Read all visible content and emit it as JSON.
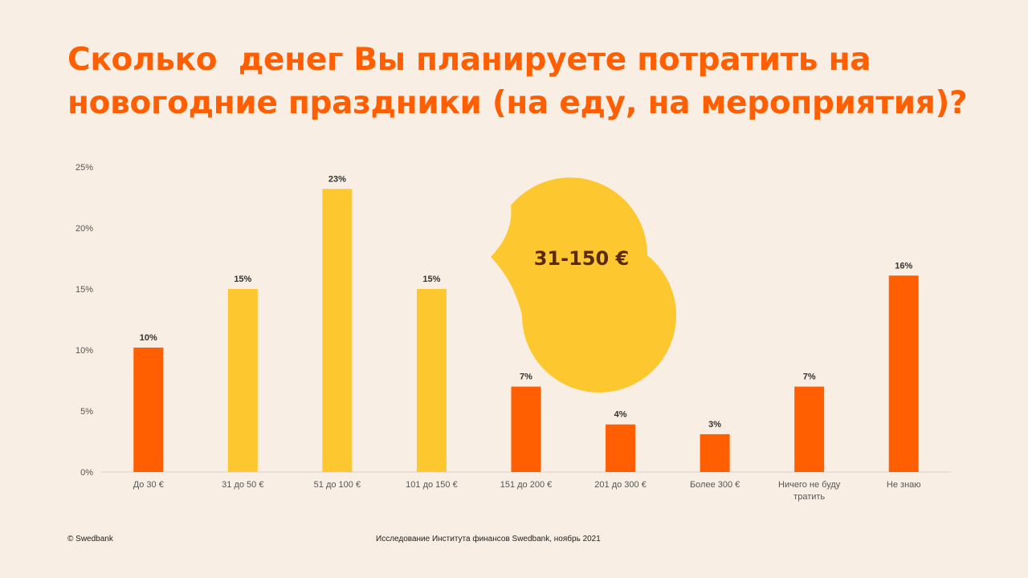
{
  "title": "Сколько  денег Вы планируете потратить на новогодние праздники (на еду, на мероприятия)?",
  "callout": {
    "label": "31-150 €",
    "color": "#fdc82f",
    "text_color": "#5a2a10"
  },
  "footer": {
    "copyright": "© Swedbank",
    "source": "Исследование Института финансов Swedbank, ноябрь 2021"
  },
  "colors": {
    "background": "#f8eee4",
    "accent_orange": "#ff5f00",
    "accent_yellow": "#fdc82f",
    "axis_text": "#555555",
    "label_text": "#333333"
  },
  "chart_data": {
    "type": "bar",
    "categories": [
      "До 30 €",
      "31 до 50 €",
      "51 до 100 €",
      "101 до 150 €",
      "151 до 200 €",
      "201 до 300 €",
      "Более 300 €",
      "Ничего не буду тратить",
      "Не знаю"
    ],
    "values": [
      10.2,
      15,
      23.2,
      15,
      7,
      3.9,
      3.1,
      7,
      16.1
    ],
    "value_labels": [
      "10%",
      "15%",
      "23%",
      "15%",
      "7%",
      "4%",
      "3%",
      "7%",
      "16%"
    ],
    "bar_colors": [
      "#ff5f00",
      "#fdc82f",
      "#fdc82f",
      "#fdc82f",
      "#ff5f00",
      "#ff5f00",
      "#ff5f00",
      "#ff5f00",
      "#ff5f00"
    ],
    "yticks": [
      "0%",
      "5%",
      "10%",
      "15%",
      "20%",
      "25%"
    ],
    "ylim": [
      0,
      25
    ],
    "grid": false
  }
}
